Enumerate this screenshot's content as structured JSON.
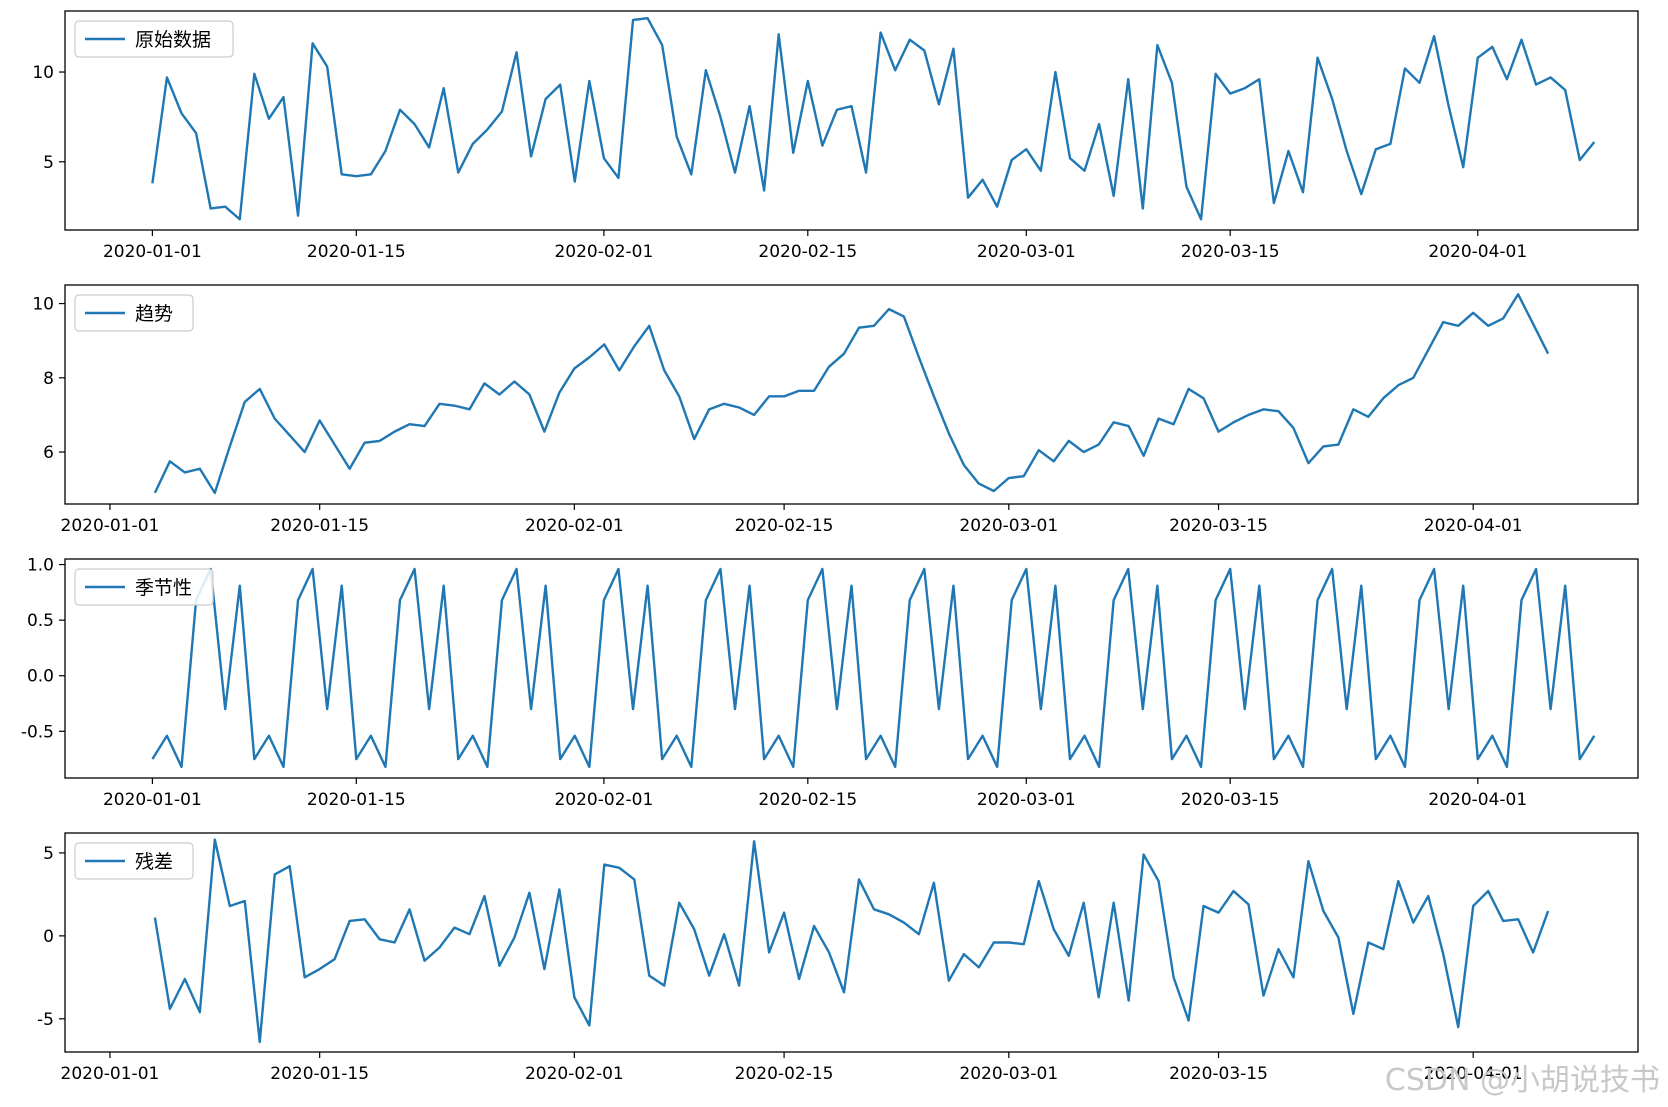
{
  "watermark": "CSDN @小胡说技书",
  "colors": {
    "line": "#1f77b4",
    "axes": "#000000",
    "legend_border": "#cccccc"
  },
  "chart_data": [
    {
      "type": "line",
      "legend": "原始数据",
      "legend_placement": "upper-left",
      "grid": false,
      "xlim": [
        "2019-12-26",
        "2020-04-12"
      ],
      "ylim": [
        1.2,
        13.4
      ],
      "x_ticks": [
        "2020-01-01",
        "2020-01-15",
        "2020-02-01",
        "2020-02-15",
        "2020-03-01",
        "2020-03-15",
        "2020-04-01"
      ],
      "y_ticks": [
        {
          "value": 5,
          "label": "5"
        },
        {
          "value": 10,
          "label": "10"
        }
      ],
      "x_start": "2020-01-01",
      "values": [
        3.8,
        9.7,
        7.7,
        6.6,
        2.4,
        2.5,
        1.8,
        9.9,
        7.4,
        8.6,
        2.0,
        11.6,
        10.3,
        4.3,
        4.2,
        4.3,
        5.6,
        7.9,
        7.1,
        5.8,
        9.1,
        4.4,
        6.0,
        6.8,
        7.8,
        11.1,
        5.3,
        8.5,
        9.3,
        3.9,
        9.5,
        5.2,
        4.1,
        12.9,
        13.0,
        11.5,
        6.4,
        4.3,
        10.1,
        7.5,
        4.4,
        8.1,
        3.4,
        12.1,
        5.5,
        9.5,
        5.9,
        7.9,
        8.1,
        4.4,
        12.2,
        10.1,
        11.8,
        11.2,
        8.2,
        11.3,
        3.0,
        4.0,
        2.5,
        5.1,
        5.7,
        4.5,
        10.0,
        5.2,
        4.5,
        7.1,
        3.1,
        9.6,
        2.4,
        11.5,
        9.4,
        3.6,
        1.8,
        9.9,
        8.8,
        9.1,
        9.6,
        2.7,
        5.6,
        3.3,
        10.8,
        8.5,
        5.6,
        3.2,
        5.7,
        6.0,
        10.2,
        9.4,
        12.0,
        8.1,
        4.7,
        10.8,
        11.4,
        9.6,
        11.8,
        9.3,
        9.7,
        9.0,
        5.1,
        6.1
      ]
    },
    {
      "type": "line",
      "legend": "趋势",
      "legend_placement": "upper-left",
      "grid": false,
      "xlim": [
        "2019-12-29",
        "2020-04-12"
      ],
      "ylim": [
        4.6,
        10.5
      ],
      "x_ticks": [
        "2020-01-01",
        "2020-01-15",
        "2020-02-01",
        "2020-02-15",
        "2020-03-01",
        "2020-03-15",
        "2020-04-01"
      ],
      "y_ticks": [
        {
          "value": 6,
          "label": "6"
        },
        {
          "value": 8,
          "label": "8"
        },
        {
          "value": 10,
          "label": "10"
        }
      ],
      "x_start": "2020-01-04",
      "values": [
        4.9,
        5.75,
        5.45,
        5.55,
        4.9,
        6.15,
        7.35,
        7.7,
        6.9,
        6.45,
        6.0,
        6.85,
        6.2,
        5.55,
        6.25,
        6.3,
        6.55,
        6.75,
        6.7,
        7.3,
        7.25,
        7.15,
        7.85,
        7.55,
        7.9,
        7.55,
        6.55,
        7.6,
        8.25,
        8.55,
        8.9,
        8.2,
        8.85,
        9.4,
        8.2,
        7.5,
        6.35,
        7.15,
        7.3,
        7.2,
        7.0,
        7.5,
        7.5,
        7.65,
        7.65,
        8.3,
        8.65,
        9.35,
        9.4,
        9.85,
        9.65,
        8.55,
        7.5,
        6.5,
        5.65,
        5.15,
        4.95,
        5.3,
        5.35,
        6.05,
        5.75,
        6.3,
        6.0,
        6.2,
        6.8,
        6.7,
        5.9,
        6.9,
        6.75,
        7.7,
        7.45,
        6.55,
        6.8,
        7.0,
        7.15,
        7.1,
        6.65,
        5.7,
        6.15,
        6.2,
        7.15,
        6.95,
        7.45,
        7.8,
        8.0,
        8.75,
        9.5,
        9.4,
        9.75,
        9.4,
        9.6,
        10.25,
        9.45,
        8.65
      ]
    },
    {
      "type": "line",
      "legend": "季节性",
      "legend_placement": "upper-left",
      "grid": false,
      "xlim": [
        "2019-12-26",
        "2020-04-12"
      ],
      "ylim": [
        -0.92,
        1.05
      ],
      "x_ticks": [
        "2020-01-01",
        "2020-01-15",
        "2020-02-01",
        "2020-02-15",
        "2020-03-01",
        "2020-03-15",
        "2020-04-01"
      ],
      "y_ticks": [
        {
          "value": -0.5,
          "label": "-0.5"
        },
        {
          "value": 0,
          "label": "0.0"
        },
        {
          "value": 0.5,
          "label": "0.5"
        },
        {
          "value": 1,
          "label": "1.0"
        }
      ],
      "x_start": "2020-01-01",
      "pattern": [
        -0.75,
        -0.54,
        -0.82,
        0.68,
        0.96,
        -0.3,
        0.81
      ],
      "length": 100
    },
    {
      "type": "line",
      "legend": "残差",
      "legend_placement": "upper-left",
      "grid": false,
      "xlim": [
        "2019-12-29",
        "2020-04-12"
      ],
      "ylim": [
        -7.0,
        6.2
      ],
      "x_ticks": [
        "2020-01-01",
        "2020-01-15",
        "2020-02-01",
        "2020-02-15",
        "2020-03-01",
        "2020-03-15",
        "2020-04-01"
      ],
      "y_ticks": [
        {
          "value": -5,
          "label": "-5"
        },
        {
          "value": 0,
          "label": "0"
        },
        {
          "value": 5,
          "label": "5"
        }
      ],
      "x_start": "2020-01-04",
      "values": [
        1.1,
        -4.4,
        -2.6,
        -4.6,
        5.8,
        1.8,
        2.1,
        -6.4,
        3.7,
        4.2,
        -2.5,
        -2.0,
        -1.4,
        0.9,
        1.0,
        -0.2,
        -0.4,
        1.6,
        -1.5,
        -0.7,
        0.5,
        0.1,
        2.4,
        -1.8,
        -0.1,
        2.6,
        -2.0,
        2.8,
        -3.7,
        -5.4,
        4.3,
        4.1,
        3.4,
        -2.4,
        -3.0,
        2.0,
        0.4,
        -2.4,
        0.1,
        -3.0,
        5.7,
        -1.0,
        1.4,
        -2.6,
        0.6,
        -1.0,
        -3.4,
        3.4,
        1.6,
        1.3,
        0.8,
        0.1,
        3.2,
        -2.7,
        -1.1,
        -1.9,
        -0.4,
        -0.4,
        -0.5,
        3.3,
        0.4,
        -1.2,
        2.0,
        -3.7,
        2.0,
        -3.9,
        4.9,
        3.3,
        -2.5,
        -5.1,
        1.8,
        1.4,
        2.7,
        1.9,
        -3.6,
        -0.8,
        -2.5,
        4.5,
        1.5,
        -0.1,
        -4.7,
        -0.4,
        -0.8,
        3.3,
        0.8,
        2.4,
        -1.1,
        -5.5,
        1.8,
        2.7,
        0.9,
        1.0,
        -1.0,
        1.5
      ]
    }
  ]
}
